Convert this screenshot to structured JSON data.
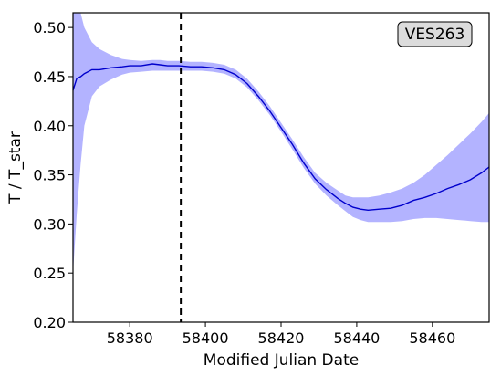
{
  "chart_data": {
    "type": "line",
    "xlabel": "Modified Julian Date",
    "ylabel": "T / T_star",
    "xlim": [
      58365,
      58475
    ],
    "ylim": [
      0.2,
      0.515
    ],
    "xticks": [
      58380,
      58400,
      58420,
      58440,
      58460
    ],
    "yticks": [
      0.2,
      0.25,
      0.3,
      0.35,
      0.4,
      0.45,
      0.5
    ],
    "grid": false,
    "annotation": "VES263",
    "vline_x": 58393.5,
    "colors": {
      "line": "#0000cc",
      "band": "#b3b3ff",
      "vline": "#000000",
      "annotation_bg": "#dcdcdc"
    },
    "series": [
      {
        "x": [
          58365,
          58366,
          58367,
          58368,
          58370,
          58372,
          58375,
          58378,
          58380,
          58383,
          58386,
          58388,
          58390,
          58393,
          58396,
          58399,
          58402,
          58405,
          58408,
          58411,
          58414,
          58417,
          58420,
          58423,
          58426,
          58429,
          58432,
          58435,
          58437,
          58439,
          58441,
          58443,
          58446,
          58449,
          58452,
          58455,
          58458,
          58461,
          58464,
          58467,
          58470,
          58473,
          58475
        ],
        "y": [
          0.436,
          0.448,
          0.45,
          0.453,
          0.457,
          0.457,
          0.459,
          0.46,
          0.461,
          0.461,
          0.463,
          0.462,
          0.461,
          0.461,
          0.46,
          0.46,
          0.459,
          0.457,
          0.452,
          0.443,
          0.43,
          0.415,
          0.398,
          0.381,
          0.362,
          0.346,
          0.335,
          0.326,
          0.321,
          0.317,
          0.315,
          0.314,
          0.315,
          0.316,
          0.319,
          0.324,
          0.327,
          0.331,
          0.336,
          0.34,
          0.345,
          0.352,
          0.358
        ],
        "lower": [
          0.25,
          0.31,
          0.36,
          0.4,
          0.43,
          0.44,
          0.447,
          0.452,
          0.454,
          0.455,
          0.456,
          0.456,
          0.456,
          0.456,
          0.456,
          0.456,
          0.455,
          0.453,
          0.448,
          0.439,
          0.426,
          0.411,
          0.394,
          0.376,
          0.357,
          0.341,
          0.329,
          0.319,
          0.313,
          0.307,
          0.304,
          0.302,
          0.302,
          0.302,
          0.303,
          0.305,
          0.306,
          0.306,
          0.305,
          0.304,
          0.303,
          0.302,
          0.302
        ],
        "upper": [
          0.515,
          0.515,
          0.515,
          0.5,
          0.485,
          0.478,
          0.472,
          0.468,
          0.467,
          0.466,
          0.467,
          0.467,
          0.466,
          0.466,
          0.465,
          0.465,
          0.464,
          0.462,
          0.457,
          0.448,
          0.435,
          0.42,
          0.403,
          0.386,
          0.368,
          0.352,
          0.342,
          0.334,
          0.329,
          0.327,
          0.327,
          0.327,
          0.329,
          0.332,
          0.336,
          0.342,
          0.35,
          0.36,
          0.37,
          0.381,
          0.392,
          0.404,
          0.413
        ]
      }
    ]
  }
}
